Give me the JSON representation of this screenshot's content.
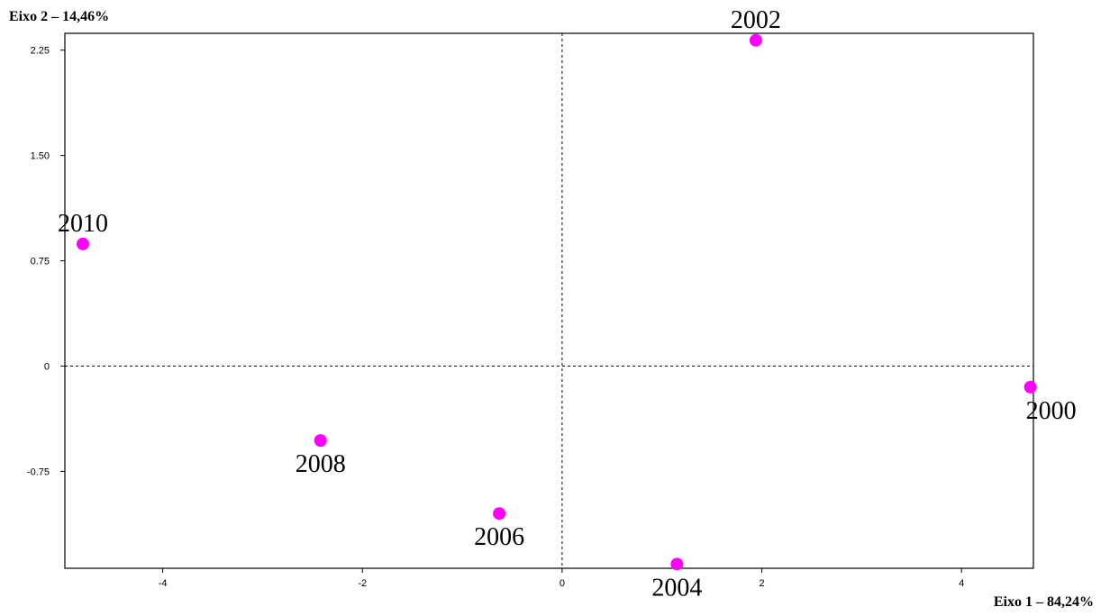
{
  "chart_data": {
    "type": "scatter",
    "xlabel": "Eixo 1 – 84,24%",
    "ylabel": "Eixo 2 – 14,46%",
    "xlim": [
      -4.98,
      4.72
    ],
    "ylim": [
      -1.44,
      2.37
    ],
    "x_ticks": [
      {
        "value": -4,
        "label": "-4"
      },
      {
        "value": -2,
        "label": "-2"
      },
      {
        "value": 0,
        "label": "0"
      },
      {
        "value": 2,
        "label": "2"
      },
      {
        "value": 4,
        "label": "4"
      }
    ],
    "y_ticks": [
      {
        "value": 2.25,
        "label": "2.25"
      },
      {
        "value": 1.5,
        "label": "1.50"
      },
      {
        "value": 0.75,
        "label": "0.75"
      },
      {
        "value": 0,
        "label": "0"
      },
      {
        "value": -0.75,
        "label": "-0.75"
      }
    ],
    "reference_lines": {
      "x": 0,
      "y": 0,
      "style": "dashed"
    },
    "points": [
      {
        "label": "2000",
        "x": 4.69,
        "y": -0.15,
        "label_position": "below-right"
      },
      {
        "label": "2002",
        "x": 1.94,
        "y": 2.32,
        "label_position": "above"
      },
      {
        "label": "2004",
        "x": 1.15,
        "y": -1.41,
        "label_position": "below"
      },
      {
        "label": "2006",
        "x": -0.63,
        "y": -1.05,
        "label_position": "below"
      },
      {
        "label": "2008",
        "x": -2.42,
        "y": -0.53,
        "label_position": "below"
      },
      {
        "label": "2010",
        "x": -4.8,
        "y": 0.87,
        "label_position": "above"
      }
    ],
    "point_color": "#ff00ff",
    "grid": false
  }
}
